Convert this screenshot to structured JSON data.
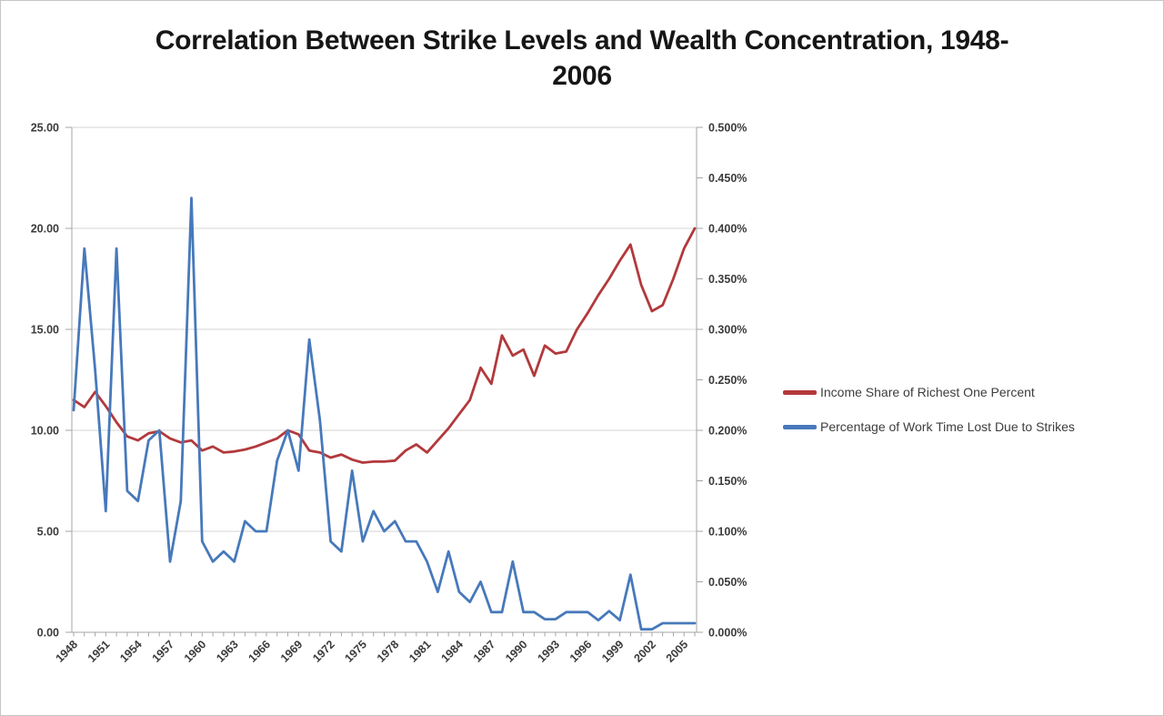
{
  "chart_data": {
    "type": "line",
    "title": "Correlation Between Strike Levels and Wealth Concentration, 1948-2006",
    "title_lines": [
      "Correlation Between Strike Levels and Wealth Concentration, 1948-",
      "2006"
    ],
    "grid": "horizontal-major",
    "legend_position": "right",
    "x": [
      1948,
      1949,
      1950,
      1951,
      1952,
      1953,
      1954,
      1955,
      1956,
      1957,
      1958,
      1959,
      1960,
      1961,
      1962,
      1963,
      1964,
      1965,
      1966,
      1967,
      1968,
      1969,
      1970,
      1971,
      1972,
      1973,
      1974,
      1975,
      1976,
      1977,
      1978,
      1979,
      1980,
      1981,
      1982,
      1983,
      1984,
      1985,
      1986,
      1987,
      1988,
      1989,
      1990,
      1991,
      1992,
      1993,
      1994,
      1995,
      1996,
      1997,
      1998,
      1999,
      2000,
      2001,
      2002,
      2003,
      2004,
      2005,
      2006
    ],
    "x_tick_interval": 3,
    "x_tick_labels": [
      "1948",
      "1951",
      "1954",
      "1957",
      "1960",
      "1963",
      "1966",
      "1969",
      "1972",
      "1975",
      "1978",
      "1981",
      "1984",
      "1987",
      "1990",
      "1993",
      "1996",
      "1999",
      "2002",
      "2005"
    ],
    "left_axis": {
      "min": 0,
      "max": 25,
      "step": 5,
      "tick_labels": [
        "0.00",
        "5.00",
        "10.00",
        "15.00",
        "20.00",
        "25.00"
      ]
    },
    "right_axis": {
      "min": 0,
      "max": 0.5,
      "step": 0.05,
      "tick_labels": [
        "0.000%",
        "0.050%",
        "0.100%",
        "0.150%",
        "0.200%",
        "0.250%",
        "0.300%",
        "0.350%",
        "0.400%",
        "0.450%",
        "0.500%"
      ]
    },
    "series": [
      {
        "name": "Income Share of Richest One Percent",
        "axis": "left",
        "color": "#B2393C",
        "values": [
          11.5,
          11.15,
          11.9,
          11.2,
          10.4,
          9.7,
          9.5,
          9.85,
          9.95,
          9.6,
          9.4,
          9.5,
          9.0,
          9.2,
          8.9,
          8.95,
          9.05,
          9.2,
          9.4,
          9.6,
          10.0,
          9.8,
          9.0,
          8.9,
          8.65,
          8.8,
          8.55,
          8.4,
          8.45,
          8.45,
          8.5,
          9.0,
          9.3,
          8.9,
          9.5,
          10.1,
          10.8,
          11.5,
          13.1,
          12.3,
          14.7,
          13.7,
          14.0,
          12.7,
          14.2,
          13.8,
          13.9,
          15.0,
          15.8,
          16.7,
          17.5,
          18.4,
          19.2,
          17.2,
          15.9,
          16.2,
          17.5,
          19.0,
          20.0
        ]
      },
      {
        "name": "Percentage of Work Time Lost Due to Strikes",
        "axis": "right",
        "color": "#4779BB",
        "values": [
          0.22,
          0.38,
          0.26,
          0.12,
          0.38,
          0.14,
          0.13,
          0.19,
          0.2,
          0.07,
          0.13,
          0.43,
          0.09,
          0.07,
          0.08,
          0.07,
          0.11,
          0.1,
          0.1,
          0.17,
          0.2,
          0.16,
          0.29,
          0.21,
          0.09,
          0.08,
          0.16,
          0.09,
          0.12,
          0.1,
          0.11,
          0.09,
          0.09,
          0.07,
          0.04,
          0.08,
          0.04,
          0.03,
          0.05,
          0.02,
          0.02,
          0.07,
          0.02,
          0.02,
          0.013,
          0.013,
          0.02,
          0.02,
          0.02,
          0.012,
          0.021,
          0.012,
          0.057,
          0.003,
          0.003,
          0.009,
          0.009,
          0.009,
          0.009
        ]
      }
    ]
  }
}
